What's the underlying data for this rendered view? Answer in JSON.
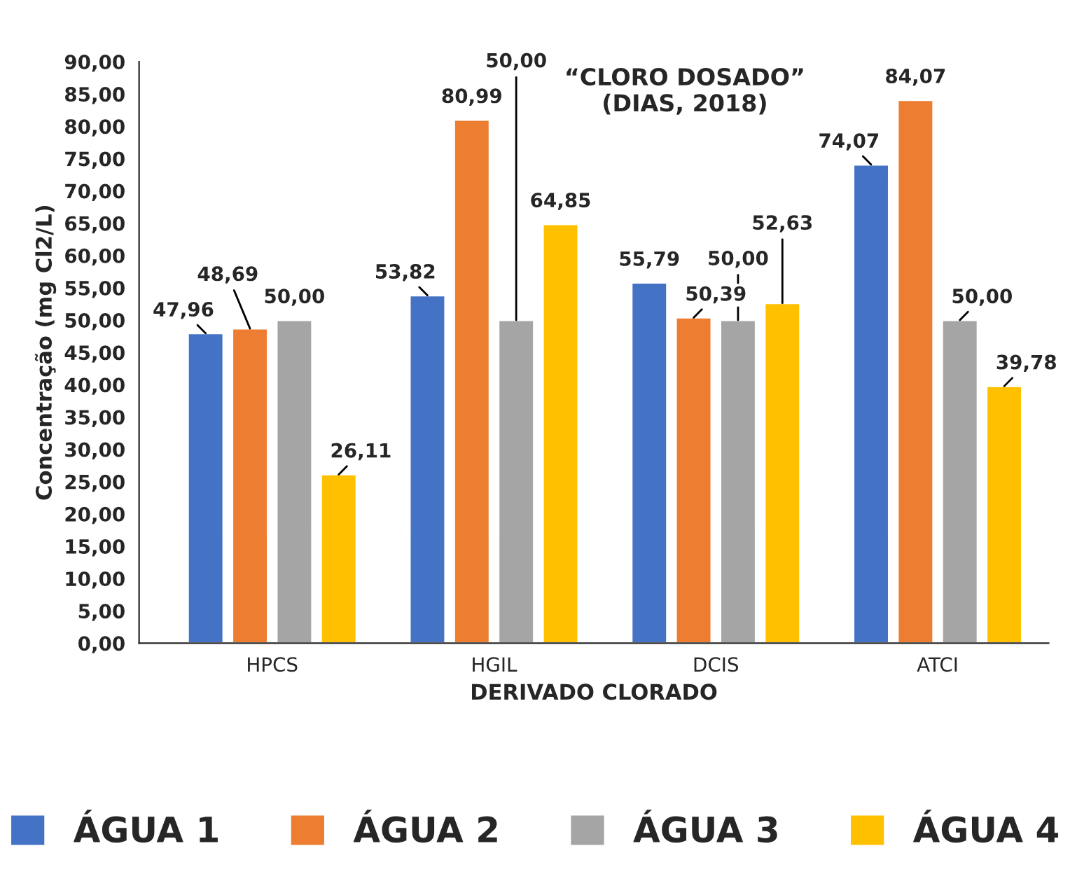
{
  "chart_data": {
    "type": "bar",
    "xlabel": "DERIVADO CLORADO",
    "ylabel": "Concentração (mg Cl2/L)",
    "annotations": [
      "“CLORO DOSADO”\n(DIAS, 2018)"
    ],
    "categories": [
      "HPCS",
      "HGIL",
      "DCIS",
      "ATCI"
    ],
    "series": [
      {
        "name": "ÁGUA 1",
        "color": "#4472c4",
        "values": [
          47.96,
          53.82,
          55.79,
          74.07
        ],
        "value_labels": [
          "47,96",
          "53,82",
          "55,79",
          "74,07"
        ]
      },
      {
        "name": "ÁGUA 2",
        "color": "#ed7d31",
        "values": [
          48.69,
          80.99,
          50.39,
          84.07
        ],
        "value_labels": [
          "48,69",
          "80,99",
          "50,39",
          "84,07"
        ]
      },
      {
        "name": "ÁGUA 3",
        "color": "#a5a5a5",
        "values": [
          50.0,
          50.0,
          50.0,
          50.0
        ],
        "value_labels": [
          "50,00",
          "50,00",
          "50,00",
          "50,00"
        ]
      },
      {
        "name": "ÁGUA 4",
        "color": "#ffc000",
        "values": [
          26.11,
          64.85,
          52.63,
          39.78
        ],
        "value_labels": [
          "26,11",
          "64,85",
          "52,63",
          "39,78"
        ]
      }
    ],
    "ylim": [
      0,
      90
    ],
    "yticks": [
      {
        "value": 0,
        "label": "0,00"
      },
      {
        "value": 5,
        "label": "5,00"
      },
      {
        "value": 10,
        "label": "10,00"
      },
      {
        "value": 15,
        "label": "15,00"
      },
      {
        "value": 20,
        "label": "20,00"
      },
      {
        "value": 25,
        "label": "25,00"
      },
      {
        "value": 30,
        "label": "30,00"
      },
      {
        "value": 35,
        "label": "35,00"
      },
      {
        "value": 40,
        "label": "40,00"
      },
      {
        "value": 45,
        "label": "45,00"
      },
      {
        "value": 50,
        "label": "50,00"
      },
      {
        "value": 55,
        "label": "55,00"
      },
      {
        "value": 60,
        "label": "60,00"
      },
      {
        "value": 65,
        "label": "65,00"
      },
      {
        "value": 70,
        "label": "70,00"
      },
      {
        "value": 75,
        "label": "75,00"
      },
      {
        "value": 80,
        "label": "80,00"
      },
      {
        "value": 85,
        "label": "85,00"
      },
      {
        "value": 90,
        "label": "90,00"
      }
    ],
    "grid": false,
    "legend": "bottom"
  }
}
